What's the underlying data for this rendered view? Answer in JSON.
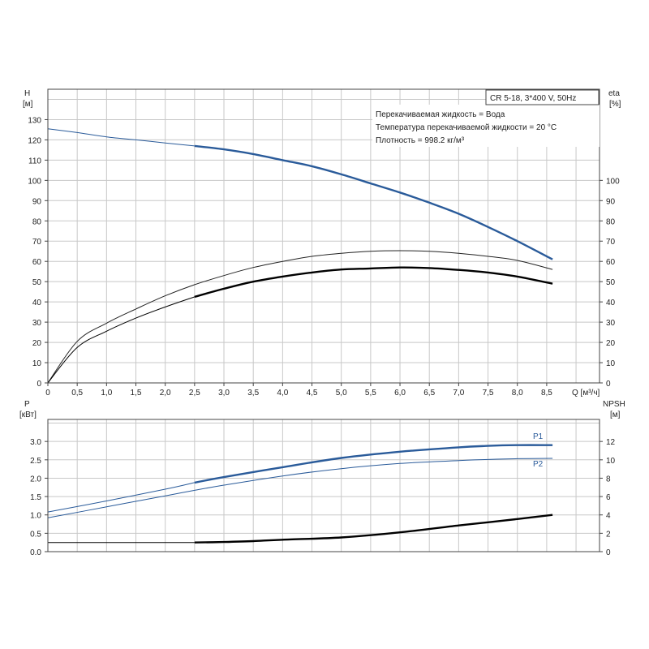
{
  "chart_data": [
    {
      "type": "line",
      "id": "top",
      "info_box": {
        "model": "CR 5-18, 3*400 V, 50Hz",
        "lines": [
          "Перекачиваемая жидкость = Вода",
          "Температура перекачиваемой жидкости = 20 °C",
          "Плотность = 998.2 кг/м³"
        ]
      },
      "x_label": "Q [м³/ч]",
      "x_ticks": [
        "0",
        "0,5",
        "1,0",
        "1,5",
        "2,0",
        "2,5",
        "3,0",
        "3,5",
        "4,0",
        "4,5",
        "5,0",
        "5,5",
        "6,0",
        "6,5",
        "7,0",
        "7,5",
        "8,0",
        "8,5"
      ],
      "xlim": [
        0,
        9.4
      ],
      "left_axis": {
        "name": "H",
        "unit": "[м]",
        "ylim": [
          0,
          145
        ],
        "ticks": [
          "0",
          "10",
          "20",
          "30",
          "40",
          "50",
          "60",
          "70",
          "80",
          "90",
          "100",
          "110",
          "120",
          "130"
        ]
      },
      "right_axis": {
        "name": "eta",
        "unit": "[%]",
        "ylim": [
          0,
          145
        ],
        "ticks": [
          "0",
          "10",
          "20",
          "30",
          "40",
          "50",
          "60",
          "70",
          "80",
          "90",
          "100"
        ]
      },
      "series": [
        {
          "key": "H",
          "axis": "left",
          "color": "#2a5b9a",
          "x": [
            0,
            0.5,
            1.0,
            1.5,
            2.0,
            2.5,
            3.0,
            3.5,
            4.0,
            4.5,
            5.0,
            5.5,
            6.0,
            6.5,
            7.0,
            7.5,
            8.0,
            8.6
          ],
          "y": [
            125.5,
            123.6,
            121.5,
            120.0,
            118.5,
            117.0,
            115.3,
            113.0,
            110.0,
            107.0,
            103.0,
            98.5,
            94.0,
            89.0,
            83.5,
            77.0,
            70.0,
            61.0
          ],
          "bold_from": 2.5
        },
        {
          "key": "eta-upper",
          "axis": "right",
          "color": "#222222",
          "x": [
            0,
            0.5,
            1.0,
            1.5,
            2.0,
            2.5,
            3.0,
            3.5,
            4.0,
            4.5,
            5.0,
            5.5,
            6.0,
            6.5,
            7.0,
            7.5,
            8.0,
            8.6
          ],
          "y": [
            0,
            20.5,
            29.5,
            36.5,
            43.0,
            48.5,
            53.0,
            57.0,
            60.0,
            62.5,
            64.0,
            65.0,
            65.3,
            65.0,
            64.0,
            62.5,
            60.5,
            56.0
          ],
          "bold_from": null
        },
        {
          "key": "eta",
          "axis": "right",
          "color": "#000000",
          "x": [
            0,
            0.5,
            1.0,
            1.5,
            2.0,
            2.5,
            3.0,
            3.5,
            4.0,
            4.5,
            5.0,
            5.5,
            6.0,
            6.5,
            7.0,
            7.5,
            8.0,
            8.6
          ],
          "y": [
            0,
            17.5,
            25.5,
            32.0,
            37.5,
            42.5,
            46.5,
            50.0,
            52.5,
            54.5,
            56.0,
            56.5,
            57.0,
            56.7,
            55.8,
            54.5,
            52.5,
            49.0
          ],
          "bold_from": 2.5
        }
      ]
    },
    {
      "type": "line",
      "id": "bottom",
      "left_axis": {
        "name": "P",
        "unit": "[кВт]",
        "ylim": [
          0,
          3.6
        ],
        "ticks": [
          "0.0",
          "0.5",
          "1.0",
          "1.5",
          "2.0",
          "2.5",
          "3.0"
        ]
      },
      "right_axis": {
        "name": "NPSH",
        "unit": "[м]",
        "ylim": [
          0,
          14.4
        ],
        "ticks": [
          "0",
          "2",
          "4",
          "6",
          "8",
          "10",
          "12"
        ]
      },
      "xlim": [
        0,
        9.4
      ],
      "series": [
        {
          "key": "P1",
          "label": "P1",
          "axis": "left",
          "color": "#2a5b9a",
          "x": [
            0,
            1.0,
            2.0,
            2.5,
            3.0,
            4.0,
            5.0,
            6.0,
            7.0,
            7.5,
            8.0,
            8.6
          ],
          "y": [
            1.08,
            1.38,
            1.7,
            1.88,
            2.03,
            2.3,
            2.55,
            2.72,
            2.84,
            2.88,
            2.9,
            2.9
          ],
          "bold_from": 2.5
        },
        {
          "key": "P2",
          "label": "P2",
          "axis": "left",
          "color": "#2a5b9a",
          "x": [
            0,
            1.0,
            2.0,
            2.5,
            3.0,
            4.0,
            5.0,
            6.0,
            7.0,
            7.5,
            8.0,
            8.6
          ],
          "y": [
            0.92,
            1.22,
            1.52,
            1.67,
            1.81,
            2.06,
            2.26,
            2.4,
            2.48,
            2.51,
            2.53,
            2.54
          ],
          "bold_from": null
        },
        {
          "key": "NPSH",
          "axis": "right",
          "color": "#000000",
          "x": [
            0,
            1.0,
            2.0,
            2.5,
            3.0,
            3.5,
            4.0,
            5.0,
            6.0,
            7.0,
            7.5,
            8.0,
            8.6
          ],
          "y": [
            1.0,
            1.0,
            1.0,
            1.0,
            1.05,
            1.15,
            1.3,
            1.55,
            2.1,
            2.85,
            3.2,
            3.55,
            4.0
          ],
          "bold_from": 2.5
        }
      ]
    }
  ]
}
